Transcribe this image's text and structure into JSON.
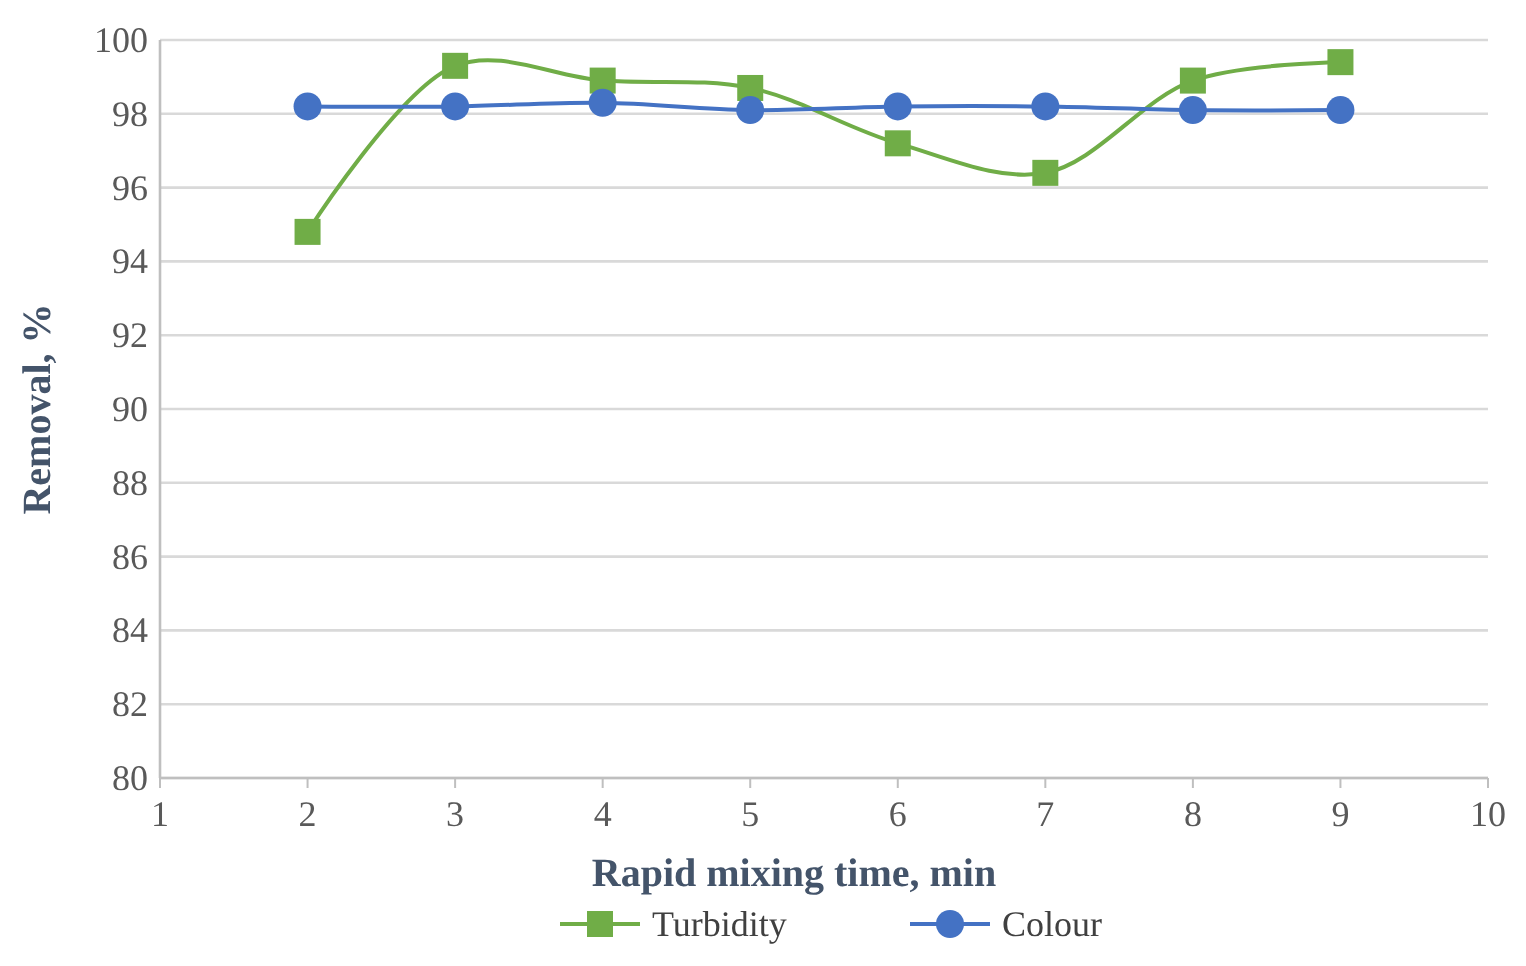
{
  "chart_data": {
    "type": "line",
    "xlabel": "Rapid mixing time, min",
    "ylabel": "Removal, %",
    "x": [
      2,
      3,
      4,
      5,
      6,
      7,
      8,
      9
    ],
    "series": [
      {
        "name": "Turbidity",
        "color": "#70ad47",
        "marker": "square",
        "values": [
          94.8,
          99.3,
          98.9,
          98.7,
          97.2,
          96.4,
          98.9,
          99.4
        ]
      },
      {
        "name": "Colour",
        "color": "#4472c4",
        "marker": "circle",
        "values": [
          98.2,
          98.2,
          98.3,
          98.1,
          98.2,
          98.2,
          98.1,
          98.1
        ]
      }
    ],
    "xlim": [
      1,
      10
    ],
    "xticks": [
      1,
      2,
      3,
      4,
      5,
      6,
      7,
      8,
      9,
      10
    ],
    "ylim": [
      80,
      100
    ],
    "yticks": [
      80,
      82,
      84,
      86,
      88,
      90,
      92,
      94,
      96,
      98,
      100
    ],
    "grid": "y",
    "legend": "bottom"
  }
}
